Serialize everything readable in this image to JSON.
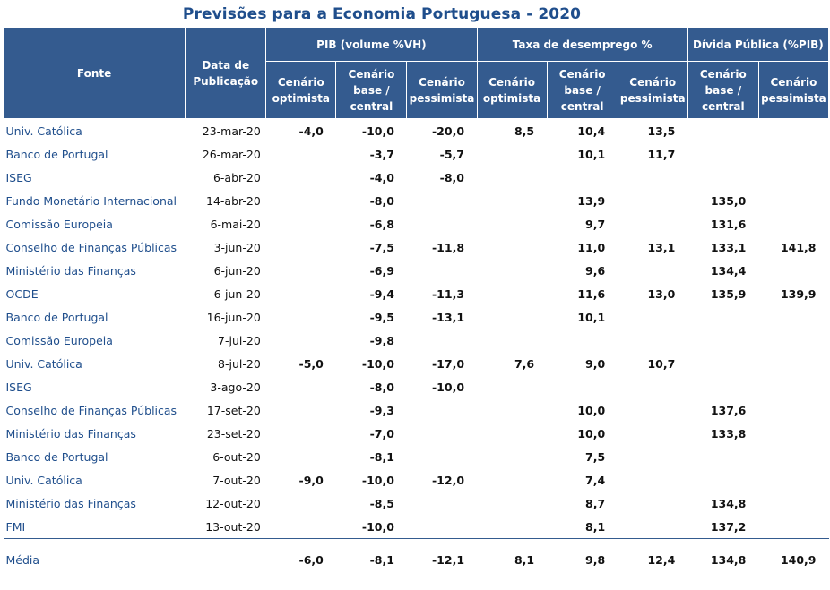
{
  "title": "Previsões para a Economia Portuguesa - 2020",
  "headers": {
    "fonte": "Fonte",
    "data": "Data de Publicação",
    "pib": "PIB (volume %VH)",
    "desemprego": "Taxa de desemprego %",
    "divida": "Dívida Pública (%PIB)",
    "optimista": "Cenário optimista",
    "base": "Cenário base / central",
    "pessimista": "Cenário pessimista"
  },
  "rows": [
    {
      "fonte": "Univ. Católica",
      "data": "23-mar-20",
      "v": [
        "-4,0",
        "-10,0",
        "-20,0",
        "8,5",
        "10,4",
        "13,5",
        "",
        ""
      ]
    },
    {
      "fonte": "Banco de Portugal",
      "data": "26-mar-20",
      "v": [
        "",
        "-3,7",
        "-5,7",
        "",
        "10,1",
        "11,7",
        "",
        ""
      ]
    },
    {
      "fonte": "ISEG",
      "data": "6-abr-20",
      "v": [
        "",
        "-4,0",
        "-8,0",
        "",
        "",
        "",
        "",
        ""
      ]
    },
    {
      "fonte": "Fundo Monetário Internacional",
      "data": "14-abr-20",
      "v": [
        "",
        "-8,0",
        "",
        "",
        "13,9",
        "",
        "135,0",
        ""
      ]
    },
    {
      "fonte": "Comissão Europeia",
      "data": "6-mai-20",
      "v": [
        "",
        "-6,8",
        "",
        "",
        "9,7",
        "",
        "131,6",
        ""
      ]
    },
    {
      "fonte": "Conselho de Finanças Públicas",
      "data": "3-jun-20",
      "v": [
        "",
        "-7,5",
        "-11,8",
        "",
        "11,0",
        "13,1",
        "133,1",
        "141,8"
      ]
    },
    {
      "fonte": "Ministério das Finanças",
      "data": "6-jun-20",
      "v": [
        "",
        "-6,9",
        "",
        "",
        "9,6",
        "",
        "134,4",
        ""
      ]
    },
    {
      "fonte": "OCDE",
      "data": "6-jun-20",
      "v": [
        "",
        "-9,4",
        "-11,3",
        "",
        "11,6",
        "13,0",
        "135,9",
        "139,9"
      ]
    },
    {
      "fonte": "Banco de Portugal",
      "data": "16-jun-20",
      "v": [
        "",
        "-9,5",
        "-13,1",
        "",
        "10,1",
        "",
        "",
        ""
      ]
    },
    {
      "fonte": "Comissão Europeia",
      "data": "7-jul-20",
      "v": [
        "",
        "-9,8",
        "",
        "",
        "",
        "",
        "",
        ""
      ]
    },
    {
      "fonte": "Univ. Católica",
      "data": "8-jul-20",
      "v": [
        "-5,0",
        "-10,0",
        "-17,0",
        "7,6",
        "9,0",
        "10,7",
        "",
        ""
      ]
    },
    {
      "fonte": "ISEG",
      "data": "3-ago-20",
      "v": [
        "",
        "-8,0",
        "-10,0",
        "",
        "",
        "",
        "",
        ""
      ]
    },
    {
      "fonte": "Conselho de Finanças Públicas",
      "data": "17-set-20",
      "v": [
        "",
        "-9,3",
        "",
        "",
        "10,0",
        "",
        "137,6",
        ""
      ]
    },
    {
      "fonte": "Ministério das Finanças",
      "data": "23-set-20",
      "v": [
        "",
        "-7,0",
        "",
        "",
        "10,0",
        "",
        "133,8",
        ""
      ]
    },
    {
      "fonte": "Banco de Portugal",
      "data": "6-out-20",
      "v": [
        "",
        "-8,1",
        "",
        "",
        "7,5",
        "",
        "",
        ""
      ]
    },
    {
      "fonte": "Univ. Católica",
      "data": "7-out-20",
      "v": [
        "-9,0",
        "-10,0",
        "-12,0",
        "",
        "7,4",
        "",
        "",
        ""
      ]
    },
    {
      "fonte": "Ministério das Finanças",
      "data": "12-out-20",
      "v": [
        "",
        "-8,5",
        "",
        "",
        "8,7",
        "",
        "134,8",
        ""
      ]
    },
    {
      "fonte": "FMI",
      "data": "13-out-20",
      "v": [
        "",
        "-10,0",
        "",
        "",
        "8,1",
        "",
        "137,2",
        ""
      ]
    }
  ],
  "media": {
    "label": "Média",
    "v": [
      "-6,0",
      "-8,1",
      "-12,1",
      "8,1",
      "9,8",
      "12,4",
      "134,8",
      "140,9"
    ]
  }
}
